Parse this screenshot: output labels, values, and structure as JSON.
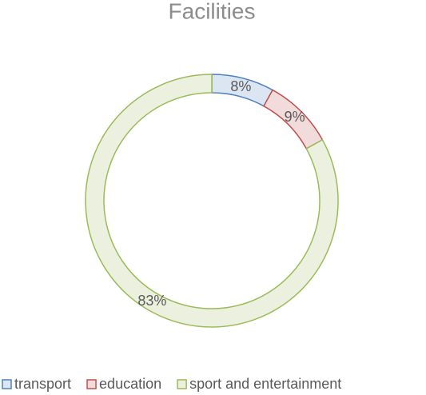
{
  "chart_data": {
    "type": "pie",
    "title": "Facilities",
    "categories": [
      "transport",
      "education",
      "sport and entertainment"
    ],
    "values": [
      8,
      9,
      83
    ],
    "value_labels": [
      "8%",
      "9%",
      "83%"
    ],
    "colors": [
      "#dce6f2",
      "#f2dcdb",
      "#ebf1de"
    ],
    "edge_colors": [
      "#4f81bd",
      "#c0504d",
      "#9bbb59"
    ],
    "donut": true,
    "legend": "bottom"
  }
}
